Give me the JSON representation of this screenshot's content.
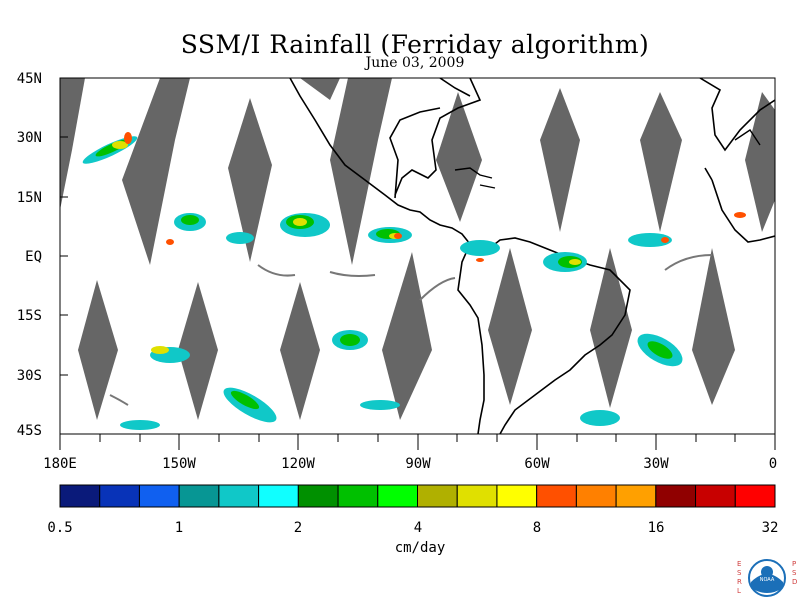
{
  "title": "SSM/I Rainfall (Ferriday algorithm)",
  "subtitle": "June 03, 2009",
  "lat_labels": [
    "45N",
    "30N",
    "15N",
    "EQ",
    "15S",
    "30S",
    "45S"
  ],
  "lon_labels": [
    "180E",
    "150W",
    "120W",
    "90W",
    "60W",
    "30W",
    "0"
  ],
  "colorbar": {
    "colors": [
      "#0a1a7a",
      "#0833b8",
      "#1060f0",
      "#079694",
      "#10c8c8",
      "#10ffff",
      "#009000",
      "#00c000",
      "#00ff00",
      "#b0b000",
      "#e0e000",
      "#ffff00",
      "#ff5000",
      "#ff8000",
      "#ffa000",
      "#900000",
      "#c80000",
      "#ff0000"
    ],
    "tick_labels": [
      "0.5",
      "1",
      "2",
      "4",
      "8",
      "16",
      "32"
    ],
    "unit": "cm/day"
  },
  "logo": {
    "left_letters": [
      "E",
      "S",
      "R",
      "L"
    ],
    "right_letters": [
      "P",
      "S",
      "D"
    ],
    "center_text": "NOAA"
  }
}
